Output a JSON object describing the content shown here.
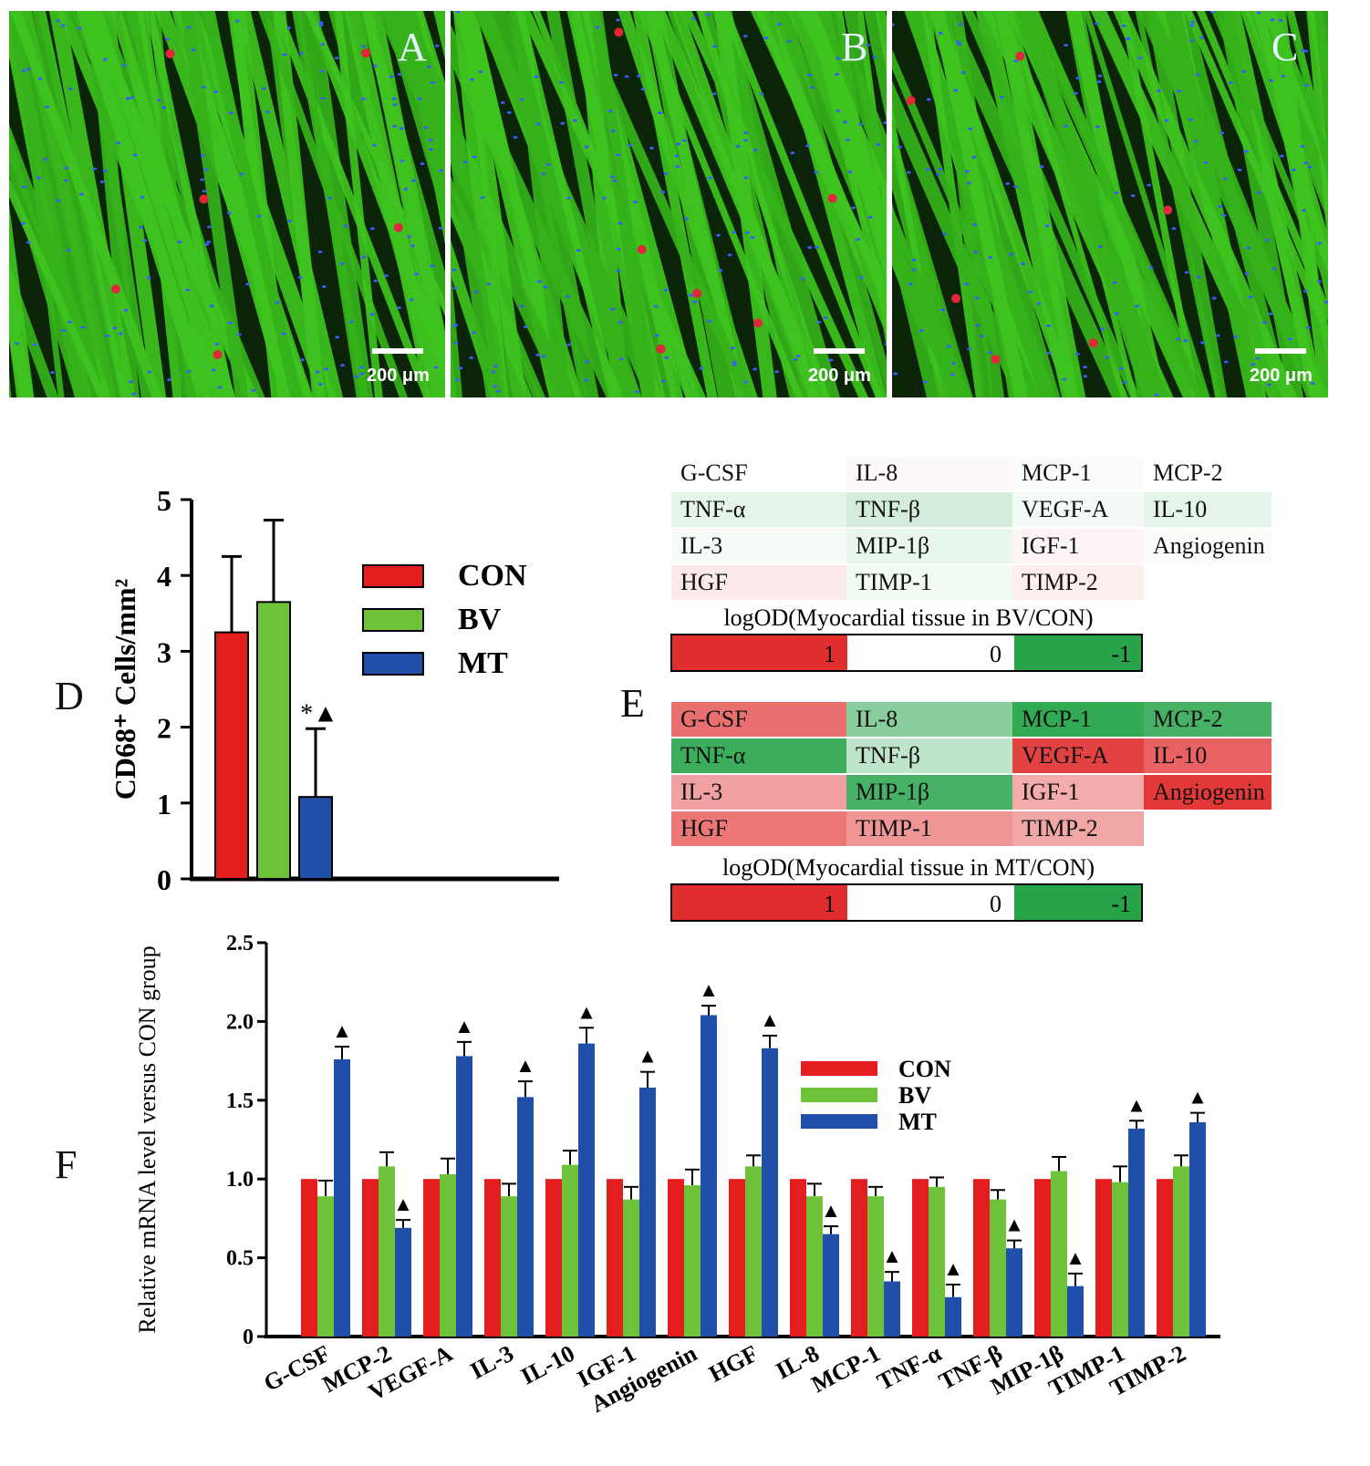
{
  "micrographs": [
    {
      "letter": "A",
      "scale": "200 μm"
    },
    {
      "letter": "B",
      "scale": "200 μm"
    },
    {
      "letter": "C",
      "scale": "200 μm"
    }
  ],
  "panel_letters": {
    "d": "D",
    "e": "E",
    "f": "F"
  },
  "colors": {
    "con": "#e41e1e",
    "bv": "#6dc23a",
    "mt": "#1f4fa8",
    "heat_red": "#e02d2d",
    "heat_green": "#27a44a",
    "tissue_green": "#3fc31f",
    "nuclei_blue": "#3a5cff",
    "macrophage_red": "#e0283a"
  },
  "chart_data": [
    {
      "id": "D",
      "type": "bar",
      "categories": [
        "CON",
        "BV",
        "MT"
      ],
      "values": [
        3.25,
        3.65,
        1.08
      ],
      "errors": [
        1.0,
        1.08,
        0.9
      ],
      "ylabel": "CD68⁺ Cells/mm²",
      "ylim": [
        0,
        5
      ],
      "yticks": [
        "0",
        "1",
        "2",
        "3",
        "4",
        "5"
      ],
      "annotations": [
        {
          "category": "MT",
          "text": "*▲"
        }
      ],
      "legend": [
        "CON",
        "BV",
        "MT"
      ],
      "legend_position": "right"
    },
    {
      "id": "E",
      "type": "heatmap",
      "title_bv": "logOD(Myocardial tissue in BV/CON)",
      "title_mt": "logOD(Myocardial tissue in MT/CON)",
      "scale_labels": [
        "1",
        "0",
        "-1"
      ],
      "bv_rows": [
        [
          {
            "label": "G-CSF",
            "v": 0.0
          },
          {
            "label": "IL-8",
            "v": 0.03
          },
          {
            "label": "MCP-1",
            "v": -0.03
          },
          {
            "label": "MCP-2",
            "v": 0.0
          }
        ],
        [
          {
            "label": "TNF-α",
            "v": -0.12
          },
          {
            "label": "TNF-β",
            "v": -0.2
          },
          {
            "label": "VEGF-A",
            "v": -0.05
          },
          {
            "label": "IL-10",
            "v": -0.12
          }
        ],
        [
          {
            "label": "IL-3",
            "v": -0.04
          },
          {
            "label": "MIP-1β",
            "v": -0.1
          },
          {
            "label": "IGF-1",
            "v": 0.05
          },
          {
            "label": "Angiogenin",
            "v": 0.02
          }
        ],
        [
          {
            "label": "HGF",
            "v": 0.1
          },
          {
            "label": "TIMP-1",
            "v": -0.06
          },
          {
            "label": "TIMP-2",
            "v": 0.08
          }
        ]
      ],
      "mt_rows": [
        [
          {
            "label": "G-CSF",
            "v": 0.68
          },
          {
            "label": "IL-8",
            "v": -0.55
          },
          {
            "label": "MCP-1",
            "v": -0.95
          },
          {
            "label": "MCP-2",
            "v": -0.85
          }
        ],
        [
          {
            "label": "TNF-α",
            "v": -0.9
          },
          {
            "label": "TNF-β",
            "v": -0.3
          },
          {
            "label": "VEGF-A",
            "v": 0.9
          },
          {
            "label": "IL-10",
            "v": 0.75
          }
        ],
        [
          {
            "label": "IL-3",
            "v": 0.45
          },
          {
            "label": "MIP-1β",
            "v": -0.85
          },
          {
            "label": "IGF-1",
            "v": 0.4
          },
          {
            "label": "Angiogenin",
            "v": 0.95
          }
        ],
        [
          {
            "label": "HGF",
            "v": 0.65
          },
          {
            "label": "TIMP-1",
            "v": 0.5
          },
          {
            "label": "TIMP-2",
            "v": 0.42
          }
        ]
      ]
    },
    {
      "id": "F",
      "type": "bar",
      "categories": [
        "G-CSF",
        "MCP-2",
        "VEGF-A",
        "IL-3",
        "IL-10",
        "IGF-1",
        "Angiogenin",
        "HGF",
        "IL-8",
        "MCP-1",
        "TNF-α",
        "TNF-β",
        "MIP-1β",
        "TIMP-1",
        "TIMP-2"
      ],
      "series": [
        {
          "name": "CON",
          "values": [
            1.0,
            1.0,
            1.0,
            1.0,
            1.0,
            1.0,
            1.0,
            1.0,
            1.0,
            1.0,
            1.0,
            1.0,
            1.0,
            1.0,
            1.0
          ],
          "errors": [
            0,
            0,
            0,
            0,
            0,
            0,
            0,
            0,
            0,
            0,
            0,
            0,
            0,
            0,
            0
          ]
        },
        {
          "name": "BV",
          "values": [
            0.89,
            1.08,
            1.03,
            0.89,
            1.09,
            0.87,
            0.96,
            1.08,
            0.89,
            0.89,
            0.95,
            0.87,
            1.05,
            0.98,
            1.08
          ],
          "errors": [
            0.1,
            0.09,
            0.1,
            0.08,
            0.09,
            0.08,
            0.1,
            0.07,
            0.08,
            0.06,
            0.06,
            0.06,
            0.09,
            0.1,
            0.07
          ]
        },
        {
          "name": "MT",
          "values": [
            1.76,
            0.69,
            1.78,
            1.52,
            1.86,
            1.58,
            2.04,
            1.83,
            0.65,
            0.35,
            0.25,
            0.56,
            0.32,
            1.32,
            1.36
          ],
          "errors": [
            0.08,
            0.05,
            0.09,
            0.1,
            0.1,
            0.1,
            0.06,
            0.08,
            0.05,
            0.06,
            0.08,
            0.05,
            0.08,
            0.05,
            0.06
          ]
        }
      ],
      "ylabel": "Relative mRNA level versus CON group",
      "ylim": [
        0,
        2.5
      ],
      "yticks": [
        "0",
        "0.5",
        "1.0",
        "1.5",
        "2.0",
        "2.5"
      ],
      "significance_marker": "▲",
      "significant_mt": [
        true,
        true,
        true,
        true,
        true,
        true,
        true,
        true,
        true,
        true,
        true,
        true,
        true,
        true,
        true
      ],
      "legend": [
        "CON",
        "BV",
        "MT"
      ],
      "legend_position": "right"
    }
  ]
}
